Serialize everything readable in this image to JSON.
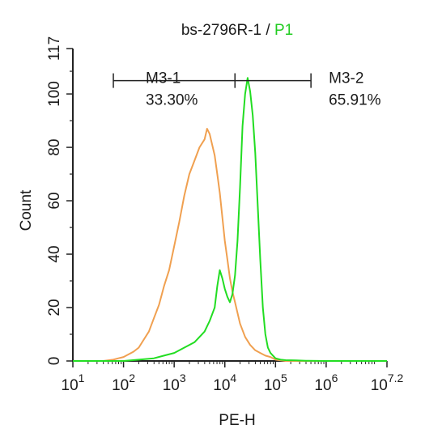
{
  "chart_data": {
    "type": "line",
    "title_sample": "bs-2796R-1",
    "title_sep": " / ",
    "title_gate": "P1",
    "xlabel": "PE-H",
    "ylabel": "Count",
    "x_scale": "log10",
    "xlim": [
      10,
      15848932
    ],
    "ylim": [
      0,
      117
    ],
    "x_ticks": [
      {
        "base": "10",
        "exp": "1",
        "value": 10
      },
      {
        "base": "10",
        "exp": "2",
        "value": 100
      },
      {
        "base": "10",
        "exp": "3",
        "value": 1000
      },
      {
        "base": "10",
        "exp": "4",
        "value": 10000
      },
      {
        "base": "10",
        "exp": "5",
        "value": 100000
      },
      {
        "base": "10",
        "exp": "6",
        "value": 1000000
      },
      {
        "base": "10",
        "exp": "7.2",
        "value": 15848932
      }
    ],
    "y_ticks": [
      {
        "label": "0",
        "value": 0
      },
      {
        "label": "20",
        "value": 20
      },
      {
        "label": "40",
        "value": 40
      },
      {
        "label": "60",
        "value": 60
      },
      {
        "label": "80",
        "value": 80
      },
      {
        "label": "100",
        "value": 100
      },
      {
        "label": "117",
        "value": 117
      }
    ],
    "grid": false,
    "colors": {
      "control": "#f0a050",
      "sample": "#22dd22",
      "title_gate": "#22cc22",
      "axis": "#222222"
    },
    "series": [
      {
        "key": "control",
        "x": [
          10,
          40,
          63,
          79,
          100,
          126,
          158,
          200,
          251,
          316,
          398,
          501,
          631,
          794,
          1000,
          1259,
          1585,
          1995,
          2512,
          3162,
          3981,
          4467,
          5012,
          5623,
          6310,
          7079,
          7943,
          8913,
          10000,
          11220,
          12589,
          14125,
          15849,
          19953,
          25119,
          31623,
          39811,
          50119,
          63096,
          79433,
          100000,
          158489,
          251189,
          398107,
          630957,
          1000000,
          15848932
        ],
        "y": [
          0,
          0,
          0.5,
          1,
          1.5,
          2.5,
          3.5,
          5,
          8,
          11,
          16,
          21,
          28,
          34,
          43,
          52,
          62,
          70,
          75,
          80,
          83,
          87,
          85,
          81,
          77,
          70,
          63,
          54,
          45,
          38,
          31,
          26,
          22,
          14,
          9,
          6,
          4,
          3,
          2,
          1.5,
          0.5,
          0,
          0,
          0,
          0,
          0,
          0
        ]
      },
      {
        "key": "sample",
        "x": [
          10,
          100,
          200,
          398,
          631,
          1000,
          1585,
          2512,
          3981,
          5012,
          6310,
          7079,
          7943,
          8913,
          10000,
          11220,
          12589,
          14125,
          15849,
          17783,
          19953,
          22387,
          25119,
          28184,
          31623,
          35481,
          39811,
          44668,
          50119,
          56234,
          63096,
          70795,
          79433,
          89125,
          100000,
          125893,
          158489,
          251189,
          398107,
          1000000,
          15848932
        ],
        "y": [
          0,
          0,
          0.5,
          1,
          2,
          3,
          5,
          7,
          11,
          15,
          20,
          28,
          34,
          31,
          27,
          24,
          22,
          25,
          32,
          45,
          65,
          88,
          100,
          106,
          101,
          92,
          78,
          58,
          38,
          20,
          10,
          5,
          3,
          2,
          1,
          0.5,
          0.3,
          0.2,
          0.1,
          0,
          0
        ]
      }
    ],
    "markers": [
      {
        "name": "M3-1",
        "percent": "33.30%",
        "x_start": 63,
        "x_end": 15849,
        "y": 105
      },
      {
        "name": "M3-2",
        "percent": "65.91%",
        "x_start": 15849,
        "x_end": 501187,
        "y": 105
      }
    ]
  }
}
